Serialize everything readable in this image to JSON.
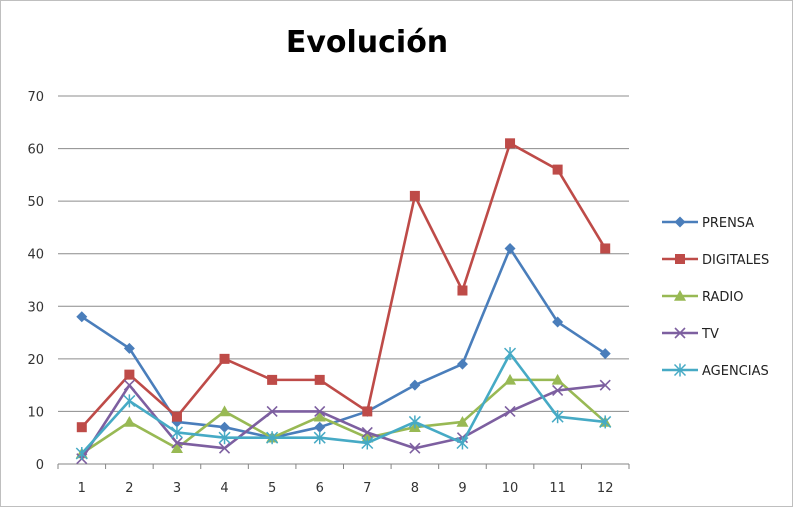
{
  "chart_data": {
    "type": "line",
    "title": "Evolución",
    "xlabel": "",
    "ylabel": "",
    "categories": [
      "1",
      "2",
      "3",
      "4",
      "5",
      "6",
      "7",
      "8",
      "9",
      "10",
      "11",
      "12"
    ],
    "ylim": [
      0,
      70
    ],
    "yticks": [
      0,
      10,
      20,
      30,
      40,
      50,
      60,
      70
    ],
    "grid": true,
    "legend_position": "right",
    "series": [
      {
        "name": "PRENSA",
        "color": "#4a7ebb",
        "marker": "diamond",
        "values": [
          28,
          22,
          8,
          7,
          5,
          7,
          10,
          15,
          19,
          41,
          27,
          21
        ]
      },
      {
        "name": "DIGITALES",
        "color": "#be4b48",
        "marker": "square",
        "values": [
          7,
          17,
          9,
          20,
          16,
          16,
          10,
          51,
          33,
          61,
          56,
          41
        ]
      },
      {
        "name": "RADIO",
        "color": "#98b954",
        "marker": "triangle",
        "values": [
          2,
          8,
          3,
          10,
          5,
          9,
          5,
          7,
          8,
          16,
          16,
          8
        ]
      },
      {
        "name": "TV",
        "color": "#7d5fa0",
        "marker": "x",
        "values": [
          1,
          15,
          4,
          3,
          10,
          10,
          6,
          3,
          5,
          10,
          14,
          15
        ]
      },
      {
        "name": "AGENCIAS",
        "color": "#46aac5",
        "marker": "star",
        "values": [
          2,
          12,
          6,
          5,
          5,
          5,
          4,
          8,
          4,
          21,
          9,
          8
        ]
      }
    ]
  }
}
